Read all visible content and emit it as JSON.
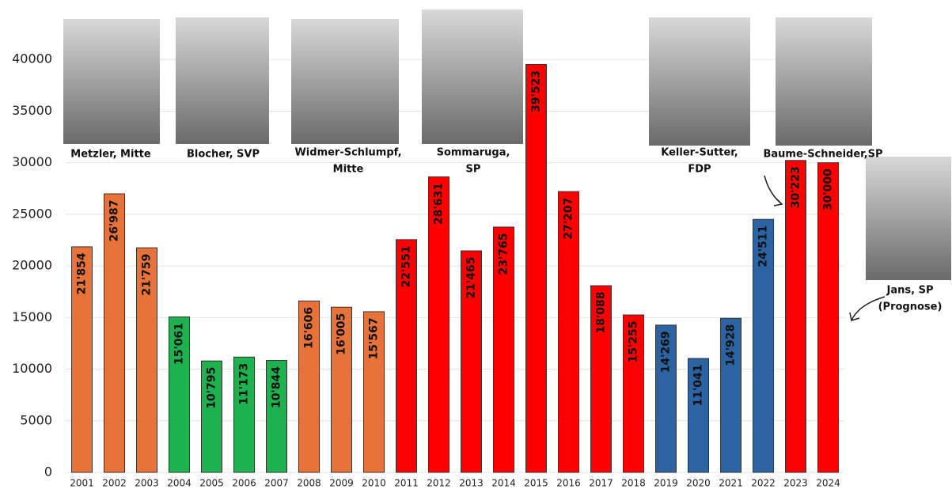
{
  "chart_data": {
    "type": "bar",
    "categories": [
      "2001",
      "2002",
      "2003",
      "2004",
      "2005",
      "2006",
      "2007",
      "2008",
      "2009",
      "2010",
      "2011",
      "2012",
      "2013",
      "2014",
      "2015",
      "2016",
      "2017",
      "2018",
      "2019",
      "2020",
      "2021",
      "2022",
      "2023",
      "2024"
    ],
    "values": [
      21854,
      26987,
      21759,
      15061,
      10795,
      11173,
      10844,
      16606,
      16005,
      15567,
      22551,
      28631,
      21465,
      23765,
      39523,
      27207,
      18088,
      15255,
      14269,
      11041,
      14928,
      24511,
      30223,
      30000
    ],
    "value_labels": [
      "21'854",
      "26'987",
      "21'759",
      "15'061",
      "10'795",
      "11'173",
      "10'844",
      "16'606",
      "16'005",
      "15'567",
      "22'551",
      "28'631",
      "21'465",
      "23'765",
      "39'523",
      "27'207",
      "18'088",
      "15'255",
      "14'269",
      "11'041",
      "14'928",
      "24'511",
      "30'223",
      "30'000"
    ],
    "colors": [
      "#e8733a",
      "#e8733a",
      "#e8733a",
      "#1db14f",
      "#1db14f",
      "#1db14f",
      "#1db14f",
      "#e8733a",
      "#e8733a",
      "#e8733a",
      "#ff0000",
      "#ff0000",
      "#ff0000",
      "#ff0000",
      "#ff0000",
      "#ff0000",
      "#ff0000",
      "#ff0000",
      "#2c63a3",
      "#2c63a3",
      "#2c63a3",
      "#2c63a3",
      "#ff0000",
      "#ff0000"
    ],
    "ylim": [
      0,
      45000
    ],
    "yticks": [
      0,
      5000,
      10000,
      15000,
      20000,
      25000,
      30000,
      35000,
      40000
    ],
    "grid": true,
    "annotations": [
      [
        "Metzler, Mitte"
      ],
      [
        "Blocher, SVP"
      ],
      [
        "Widmer-Schlumpf,",
        "Mitte"
      ],
      [
        "Sommaruga,",
        "SP"
      ],
      [
        "Keller-Sutter,",
        "FDP"
      ],
      [
        "Baume-Schneider,SP"
      ],
      [
        "Jans, SP",
        "(Prognose)"
      ]
    ]
  }
}
